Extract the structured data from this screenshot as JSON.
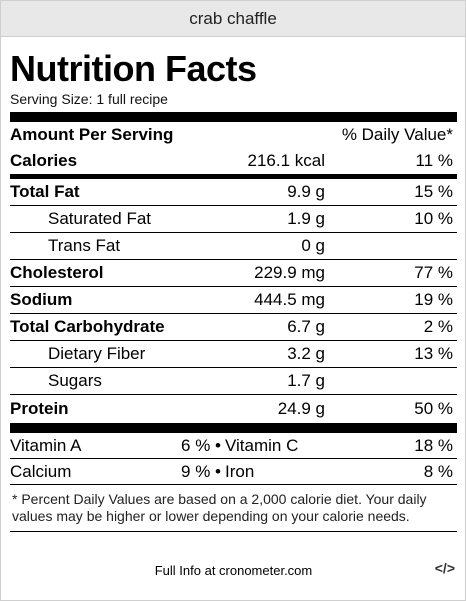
{
  "recipe_title": "crab chaffle",
  "heading": "Nutrition Facts",
  "serving_size": "Serving Size: 1 full recipe",
  "header": {
    "amount_label": "Amount Per Serving",
    "dv_label": "% Daily Value*"
  },
  "calories": {
    "label": "Calories",
    "amount": "216.1 kcal",
    "dv": "11 %"
  },
  "nutrients": [
    {
      "label": "Total Fat",
      "amount": "9.9 g",
      "dv": "15 %"
    },
    {
      "label": "Saturated Fat",
      "amount": "1.9 g",
      "dv": "10 %"
    },
    {
      "label": "Trans Fat",
      "amount": "0 g",
      "dv": ""
    },
    {
      "label": "Cholesterol",
      "amount": "229.9 mg",
      "dv": "77 %"
    },
    {
      "label": "Sodium",
      "amount": "444.5 mg",
      "dv": "19 %"
    },
    {
      "label": "Total Carbohydrate",
      "amount": "6.7 g",
      "dv": "2 %"
    },
    {
      "label": "Dietary Fiber",
      "amount": "3.2 g",
      "dv": "13 %"
    },
    {
      "label": "Sugars",
      "amount": "1.7 g",
      "dv": ""
    },
    {
      "label": "Protein",
      "amount": "24.9 g",
      "dv": "50 %"
    }
  ],
  "vitamins": [
    {
      "left_label": "Vitamin A",
      "left_value": "6 %",
      "sep": "•",
      "right_label": "Vitamin C",
      "right_value": "18 %"
    },
    {
      "left_label": "Calcium",
      "left_value": "9 %",
      "sep": "•",
      "right_label": "Iron",
      "right_value": "8 %"
    }
  ],
  "footnote": "* Percent Daily Values are based on a 2,000 calorie diet. Your daily values may be higher or lower depending on your calorie needs.",
  "footer_link": "Full Info at cronometer.com",
  "embed_icon_text": "</>"
}
